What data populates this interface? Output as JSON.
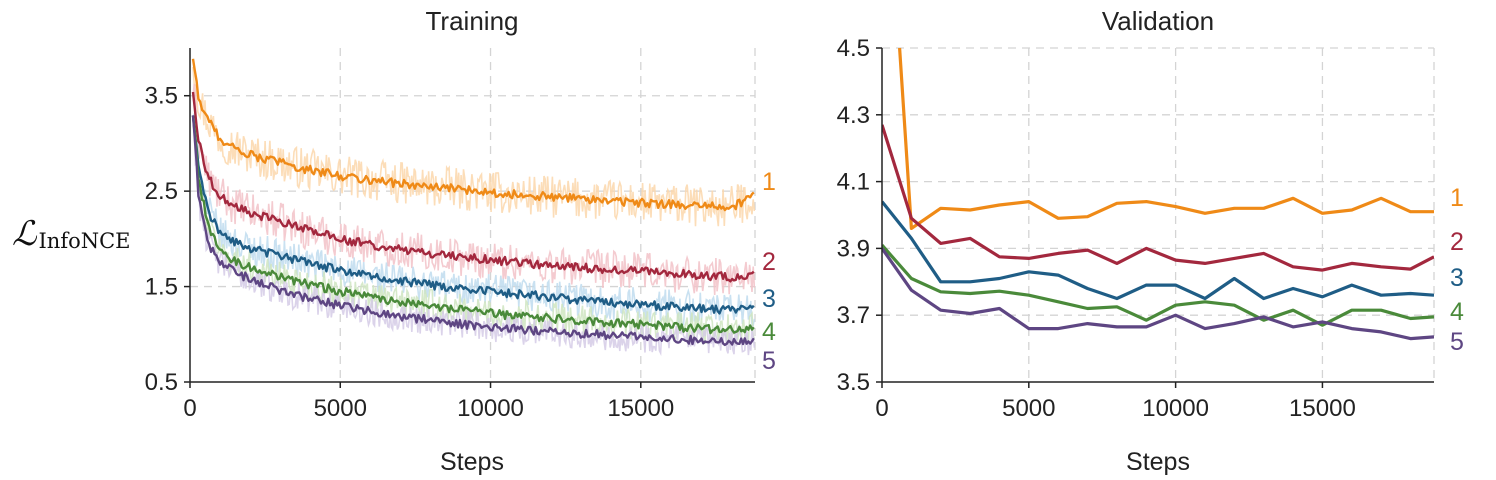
{
  "colors": {
    "1": "#ef8a17",
    "2": "#a3283e",
    "3": "#1f5d86",
    "4": "#4a8a3a",
    "5": "#5e4683",
    "1_light": "#fbd7ac",
    "2_light": "#f2c2c8",
    "3_light": "#bfdcef",
    "4_light": "#cfe5c1",
    "5_light": "#d5cbe6"
  },
  "chart_data": [
    {
      "type": "line",
      "title": "Training",
      "xlabel": "Steps",
      "ylabel": "ℒ",
      "ylabel_sub": "InfoNCE",
      "xlim": [
        0,
        18800
      ],
      "ylim": [
        0.5,
        4.0
      ],
      "xticks": [
        0,
        5000,
        10000,
        15000
      ],
      "xtick_labels": [
        "0",
        "5000",
        "10000",
        "15000"
      ],
      "yticks": [
        0.5,
        1.5,
        2.5,
        3.5
      ],
      "ytick_labels": [
        "0.5",
        "1.5",
        "2.5",
        "3.5"
      ],
      "grid": true,
      "series_labels_position": "right-end",
      "series": [
        {
          "name": "1",
          "color_key": "1",
          "x": [
            100,
            300,
            600,
            1000,
            1500,
            2000,
            3000,
            4000,
            5000,
            6000,
            7000,
            8000,
            9000,
            10000,
            11000,
            12000,
            13000,
            14000,
            15000,
            16000,
            17000,
            18000,
            18800
          ],
          "y": [
            3.9,
            3.45,
            3.25,
            3.05,
            2.95,
            2.88,
            2.8,
            2.72,
            2.66,
            2.62,
            2.58,
            2.54,
            2.52,
            2.49,
            2.46,
            2.44,
            2.42,
            2.4,
            2.38,
            2.36,
            2.34,
            2.33,
            2.45
          ]
        },
        {
          "name": "2",
          "color_key": "2",
          "x": [
            100,
            300,
            600,
            1000,
            1500,
            2000,
            3000,
            4000,
            5000,
            6000,
            7000,
            8000,
            9000,
            10000,
            11000,
            12000,
            13000,
            14000,
            15000,
            16000,
            17000,
            18000,
            18800
          ],
          "y": [
            3.55,
            3.0,
            2.65,
            2.45,
            2.35,
            2.28,
            2.18,
            2.08,
            2.0,
            1.94,
            1.89,
            1.85,
            1.81,
            1.78,
            1.75,
            1.72,
            1.7,
            1.68,
            1.66,
            1.64,
            1.62,
            1.6,
            1.62
          ]
        },
        {
          "name": "3",
          "color_key": "3",
          "x": [
            100,
            300,
            600,
            1000,
            1500,
            2000,
            3000,
            4000,
            5000,
            6000,
            7000,
            8000,
            9000,
            10000,
            11000,
            12000,
            13000,
            14000,
            15000,
            16000,
            17000,
            18000,
            18800
          ],
          "y": [
            3.3,
            2.75,
            2.3,
            2.05,
            1.96,
            1.9,
            1.82,
            1.74,
            1.67,
            1.61,
            1.56,
            1.52,
            1.48,
            1.45,
            1.42,
            1.39,
            1.36,
            1.33,
            1.31,
            1.29,
            1.27,
            1.25,
            1.27
          ]
        },
        {
          "name": "4",
          "color_key": "4",
          "x": [
            100,
            300,
            600,
            1000,
            1500,
            2000,
            3000,
            4000,
            5000,
            6000,
            7000,
            8000,
            9000,
            10000,
            11000,
            12000,
            13000,
            14000,
            15000,
            16000,
            17000,
            18000,
            18800
          ],
          "y": [
            3.3,
            2.6,
            2.15,
            1.88,
            1.76,
            1.7,
            1.6,
            1.52,
            1.45,
            1.39,
            1.34,
            1.3,
            1.26,
            1.22,
            1.19,
            1.17,
            1.14,
            1.12,
            1.1,
            1.08,
            1.06,
            1.04,
            1.05
          ]
        },
        {
          "name": "5",
          "color_key": "5",
          "x": [
            100,
            300,
            600,
            1000,
            1500,
            2000,
            3000,
            4000,
            5000,
            6000,
            7000,
            8000,
            9000,
            10000,
            11000,
            12000,
            13000,
            14000,
            15000,
            16000,
            17000,
            18000,
            18800
          ],
          "y": [
            3.3,
            2.4,
            1.95,
            1.75,
            1.65,
            1.58,
            1.46,
            1.37,
            1.3,
            1.24,
            1.19,
            1.15,
            1.11,
            1.08,
            1.05,
            1.03,
            1.01,
            0.99,
            0.97,
            0.95,
            0.93,
            0.92,
            0.94
          ]
        }
      ]
    },
    {
      "type": "line",
      "title": "Validation",
      "xlabel": "Steps",
      "ylabel": "",
      "xlim": [
        0,
        18800
      ],
      "ylim": [
        3.5,
        4.5
      ],
      "xticks": [
        0,
        5000,
        10000,
        15000
      ],
      "xtick_labels": [
        "0",
        "5000",
        "10000",
        "15000"
      ],
      "yticks": [
        3.5,
        3.7,
        3.9,
        4.1,
        4.3,
        4.5
      ],
      "ytick_labels": [
        "3.5",
        "3.7",
        "3.9",
        "4.1",
        "4.3",
        "4.5"
      ],
      "grid": true,
      "series_labels_position": "right-end",
      "series": [
        {
          "name": "1",
          "color_key": "1",
          "x": [
            600,
            1000,
            2000,
            3000,
            4000,
            5000,
            6000,
            7000,
            8000,
            9000,
            10000,
            11000,
            12000,
            13000,
            14000,
            15000,
            16000,
            17000,
            18000,
            18800
          ],
          "y": [
            4.5,
            3.96,
            4.02,
            4.015,
            4.03,
            4.04,
            3.99,
            3.995,
            4.035,
            4.04,
            4.025,
            4.005,
            4.02,
            4.02,
            4.05,
            4.005,
            4.015,
            4.05,
            4.01,
            4.01
          ]
        },
        {
          "name": "2",
          "color_key": "2",
          "x": [
            0,
            1000,
            2000,
            3000,
            4000,
            5000,
            6000,
            7000,
            8000,
            9000,
            10000,
            11000,
            12000,
            13000,
            14000,
            15000,
            16000,
            17000,
            18000,
            18800
          ],
          "y": [
            4.27,
            3.99,
            3.915,
            3.93,
            3.875,
            3.87,
            3.885,
            3.895,
            3.855,
            3.9,
            3.865,
            3.855,
            3.87,
            3.885,
            3.845,
            3.835,
            3.855,
            3.845,
            3.838,
            3.875
          ]
        },
        {
          "name": "3",
          "color_key": "3",
          "x": [
            0,
            1000,
            2000,
            3000,
            4000,
            5000,
            6000,
            7000,
            8000,
            9000,
            10000,
            11000,
            12000,
            13000,
            14000,
            15000,
            16000,
            17000,
            18000,
            18800
          ],
          "y": [
            4.04,
            3.93,
            3.8,
            3.8,
            3.81,
            3.83,
            3.82,
            3.78,
            3.75,
            3.79,
            3.79,
            3.75,
            3.81,
            3.75,
            3.78,
            3.755,
            3.79,
            3.76,
            3.765,
            3.76
          ]
        },
        {
          "name": "4",
          "color_key": "4",
          "x": [
            0,
            1000,
            2000,
            3000,
            4000,
            5000,
            6000,
            7000,
            8000,
            9000,
            10000,
            11000,
            12000,
            13000,
            14000,
            15000,
            16000,
            17000,
            18000,
            18800
          ],
          "y": [
            3.91,
            3.81,
            3.77,
            3.765,
            3.772,
            3.76,
            3.74,
            3.72,
            3.725,
            3.685,
            3.73,
            3.74,
            3.73,
            3.685,
            3.715,
            3.67,
            3.715,
            3.715,
            3.69,
            3.695
          ]
        },
        {
          "name": "5",
          "color_key": "5",
          "x": [
            0,
            1000,
            2000,
            3000,
            4000,
            5000,
            6000,
            7000,
            8000,
            9000,
            10000,
            11000,
            12000,
            13000,
            14000,
            15000,
            16000,
            17000,
            18000,
            18800
          ],
          "y": [
            3.9,
            3.775,
            3.715,
            3.705,
            3.72,
            3.66,
            3.66,
            3.675,
            3.665,
            3.665,
            3.7,
            3.66,
            3.675,
            3.695,
            3.665,
            3.68,
            3.66,
            3.65,
            3.63,
            3.635
          ]
        }
      ]
    }
  ]
}
